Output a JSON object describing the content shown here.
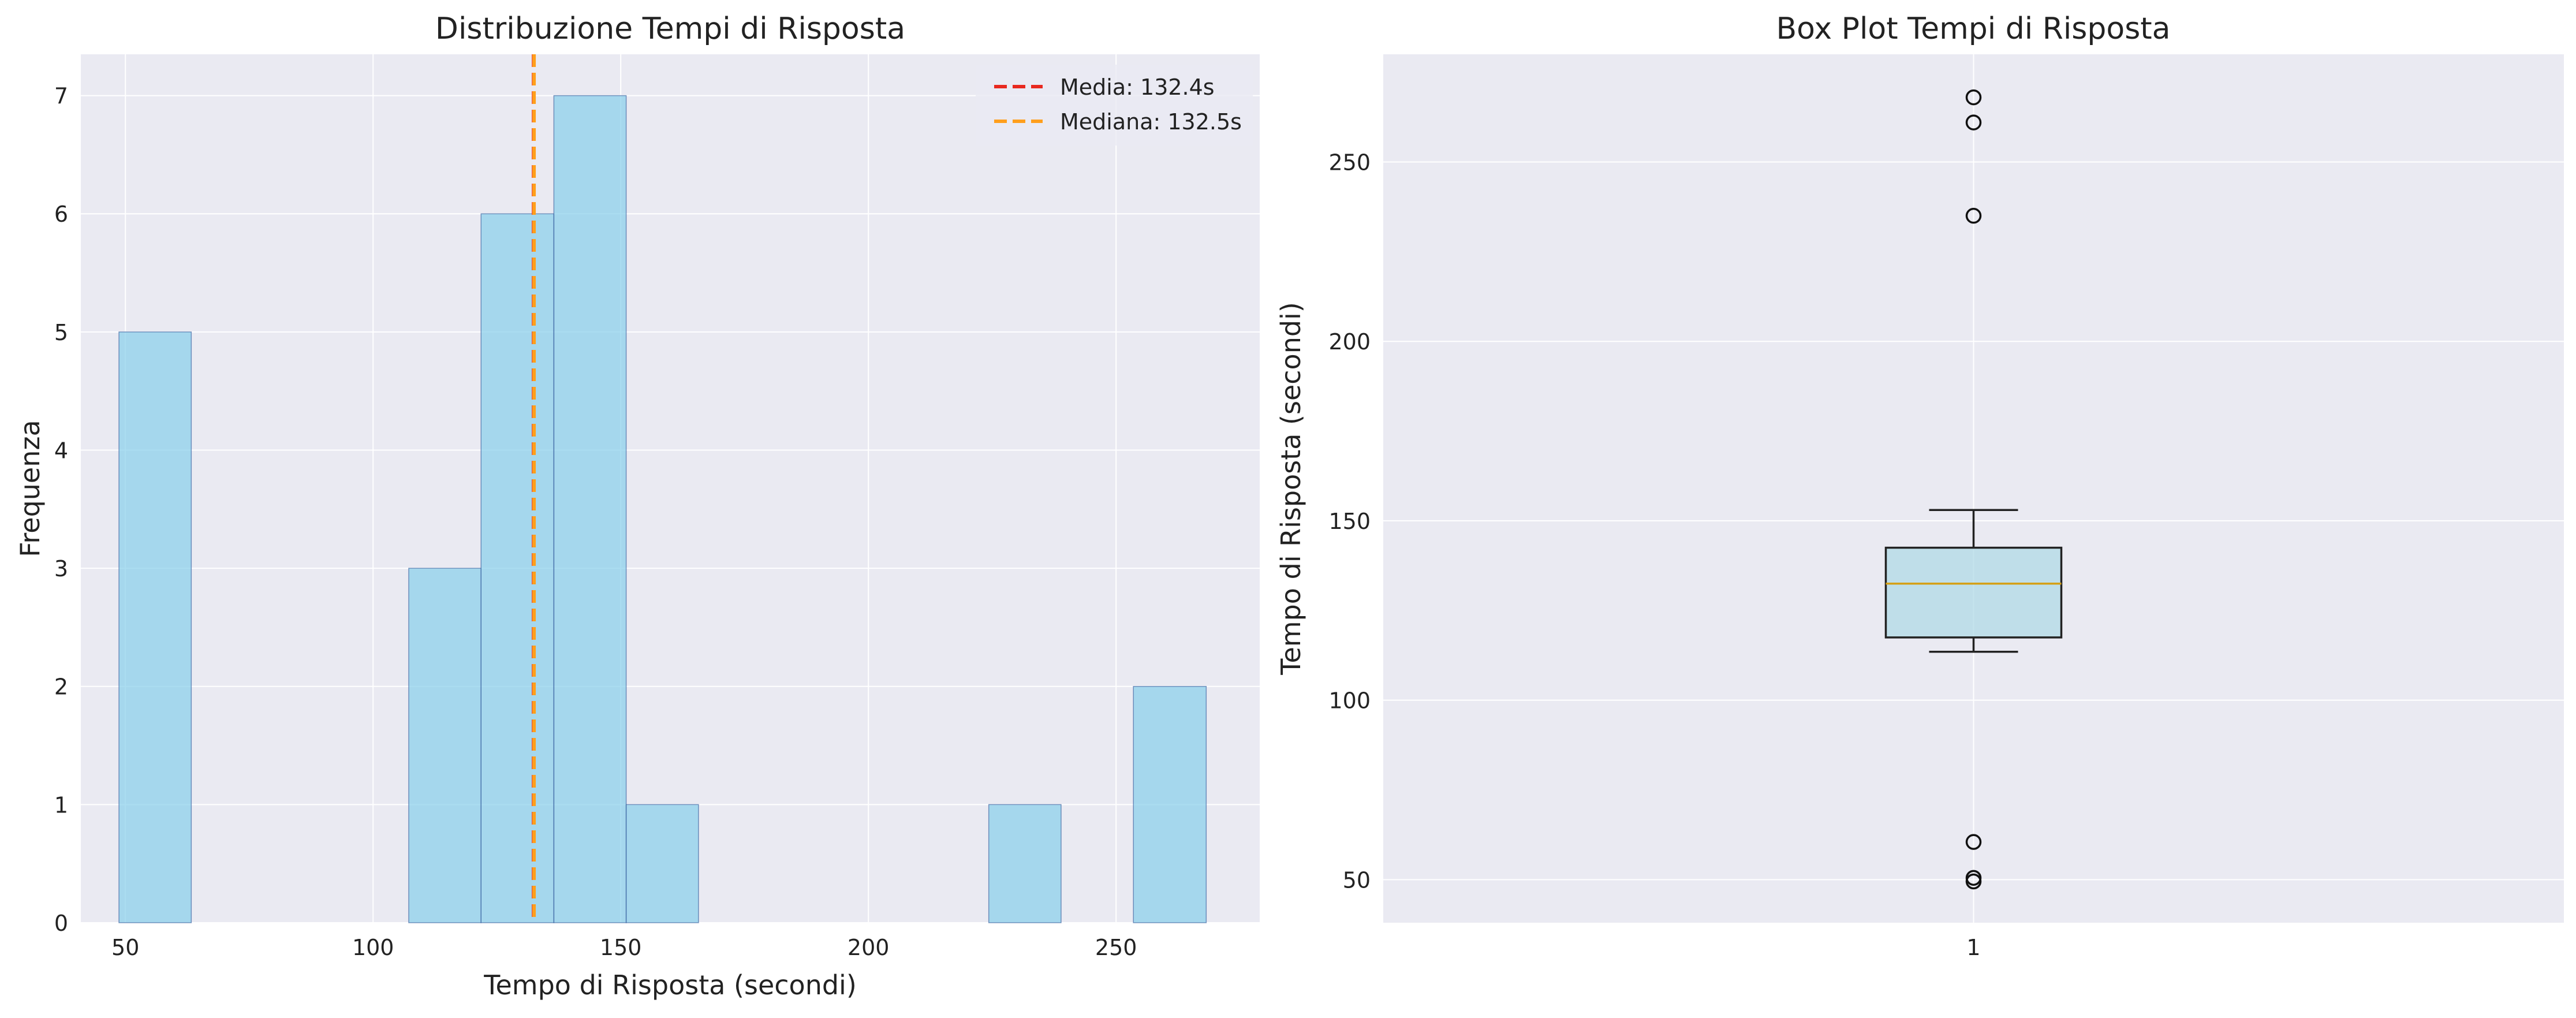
{
  "chart_data": [
    {
      "type": "bar",
      "title": "Distribuzione Tempi di Risposta",
      "xlabel": "Tempo di Risposta (secondi)",
      "ylabel": "Frequenza",
      "xlim": [
        41,
        279
      ],
      "ylim": [
        0,
        7.35
      ],
      "xticks": [
        50,
        100,
        150,
        200,
        250
      ],
      "yticks": [
        0,
        1,
        2,
        3,
        4,
        5,
        6,
        7
      ],
      "grid": true,
      "legend_position": "top-right",
      "bins": [
        {
          "x0": 48.7,
          "x1": 63.3,
          "count": 5
        },
        {
          "x0": 63.3,
          "x1": 77.9,
          "count": 0
        },
        {
          "x0": 77.9,
          "x1": 92.6,
          "count": 0
        },
        {
          "x0": 92.6,
          "x1": 107.2,
          "count": 0
        },
        {
          "x0": 107.2,
          "x1": 121.8,
          "count": 3
        },
        {
          "x0": 121.8,
          "x1": 136.5,
          "count": 6
        },
        {
          "x0": 136.5,
          "x1": 151.1,
          "count": 7
        },
        {
          "x0": 151.1,
          "x1": 165.7,
          "count": 1
        },
        {
          "x0": 165.7,
          "x1": 180.4,
          "count": 0
        },
        {
          "x0": 180.4,
          "x1": 195.0,
          "count": 0
        },
        {
          "x0": 195.0,
          "x1": 209.6,
          "count": 0
        },
        {
          "x0": 209.6,
          "x1": 224.3,
          "count": 0
        },
        {
          "x0": 224.3,
          "x1": 238.9,
          "count": 1
        },
        {
          "x0": 238.9,
          "x1": 253.5,
          "count": 0
        },
        {
          "x0": 253.5,
          "x1": 268.2,
          "count": 2
        }
      ],
      "bar_color": "#87CEEB",
      "bar_edge_color": "#2F5597",
      "vlines": [
        {
          "label": "Media: 132.4s",
          "x": 132.4,
          "color": "#E8281E"
        },
        {
          "label": "Mediana: 132.5s",
          "x": 132.5,
          "color": "#FF9F1C"
        }
      ]
    },
    {
      "type": "box",
      "title": "Box Plot Tempi di Risposta",
      "xlabel": "",
      "ylabel": "Tempo di Risposta (secondi)",
      "ylim": [
        38,
        280
      ],
      "yticks": [
        50,
        100,
        150,
        200,
        250
      ],
      "xticks": [
        "1"
      ],
      "grid": true,
      "box": {
        "whisker_low": 113.5,
        "q1": 117.5,
        "median": 132.5,
        "q3": 142.5,
        "whisker_high": 153.0,
        "outliers": [
          49.5,
          50.5,
          60.5,
          235.0,
          261.0,
          268.0
        ]
      },
      "box_color": "#ADD8E6",
      "median_color": "#D4A017"
    }
  ]
}
